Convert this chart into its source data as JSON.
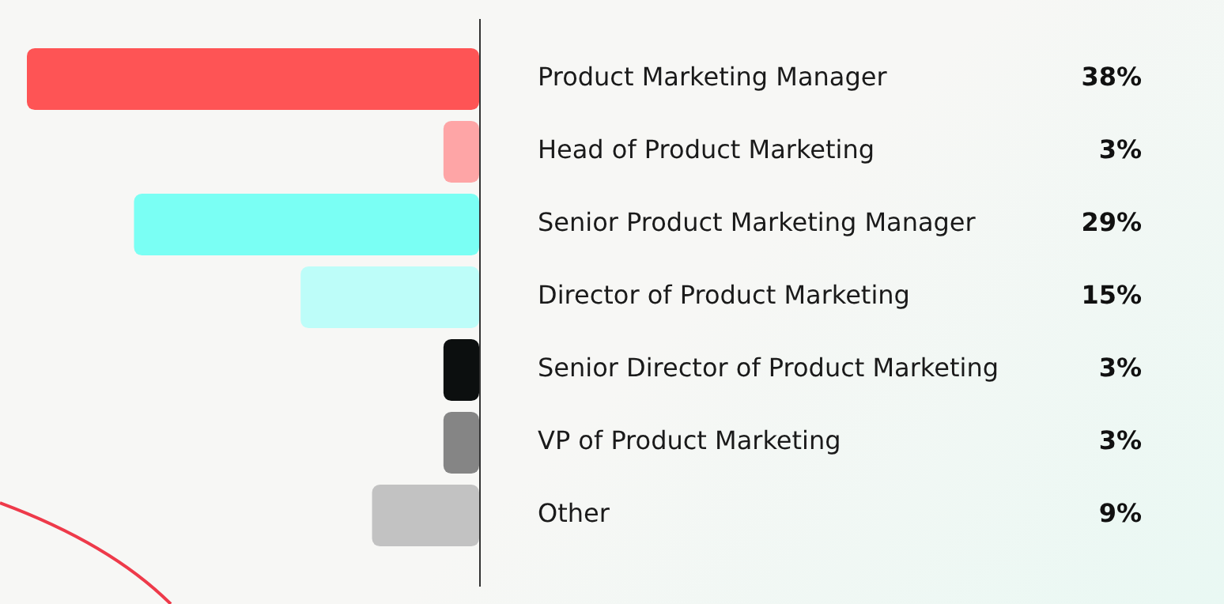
{
  "chart_data": {
    "type": "bar",
    "orientation": "horizontal",
    "tick_labels": "y",
    "categories": [
      "Product Marketing Manager",
      "Head of Product Marketing",
      "Senior Product Marketing Manager",
      "Director of Product Marketing",
      "Senior Director of Product Marketing",
      "VP of Product Marketing",
      "Other"
    ],
    "values": [
      38,
      3,
      29,
      15,
      3,
      3,
      9
    ],
    "colors": [
      "#fe5455",
      "#fea5a6",
      "#7afff4",
      "#bdfdf9",
      "#0c0f0f",
      "#858585",
      "#c2c2c2"
    ],
    "value_labels": [
      "38%",
      "3%",
      "29%",
      "15%",
      "3%",
      "3%",
      "9%"
    ],
    "xlim": [
      38,
      0
    ]
  }
}
